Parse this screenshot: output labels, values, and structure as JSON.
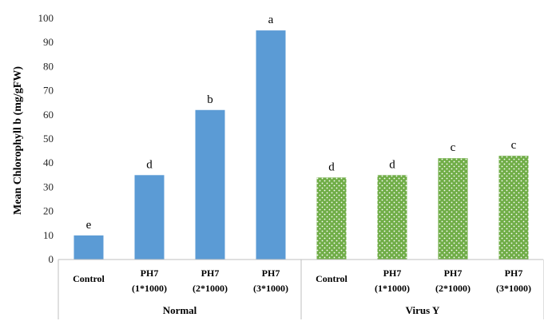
{
  "chart_data": {
    "type": "bar",
    "title": "",
    "ylabel": "Mean Chlorophyll b (mg/gFW)",
    "xlabel": "",
    "ylim": [
      0,
      100
    ],
    "yticks": [
      0,
      10,
      20,
      30,
      40,
      50,
      60,
      70,
      80,
      90,
      100
    ],
    "grid": false,
    "groups": [
      {
        "name": "Normal",
        "style": "solid",
        "color": "#5b9bd5",
        "bars": [
          {
            "label_lines": [
              "Control"
            ],
            "value": 10,
            "sig": "e"
          },
          {
            "label_lines": [
              "PH7",
              "(1*1000)"
            ],
            "value": 35,
            "sig": "d"
          },
          {
            "label_lines": [
              "PH7",
              "(2*1000)"
            ],
            "value": 62,
            "sig": "b"
          },
          {
            "label_lines": [
              "PH7",
              "(3*1000)"
            ],
            "value": 95,
            "sig": "a"
          }
        ]
      },
      {
        "name": "Virus Y",
        "style": "dotted",
        "color": "#70ad47",
        "bars": [
          {
            "label_lines": [
              "Control"
            ],
            "value": 34,
            "sig": "d"
          },
          {
            "label_lines": [
              "PH7",
              "(1*1000)"
            ],
            "value": 35,
            "sig": "d"
          },
          {
            "label_lines": [
              "PH7",
              "(2*1000)"
            ],
            "value": 42,
            "sig": "c"
          },
          {
            "label_lines": [
              "PH7",
              "(3*1000)"
            ],
            "value": 43,
            "sig": "c"
          }
        ]
      }
    ]
  }
}
